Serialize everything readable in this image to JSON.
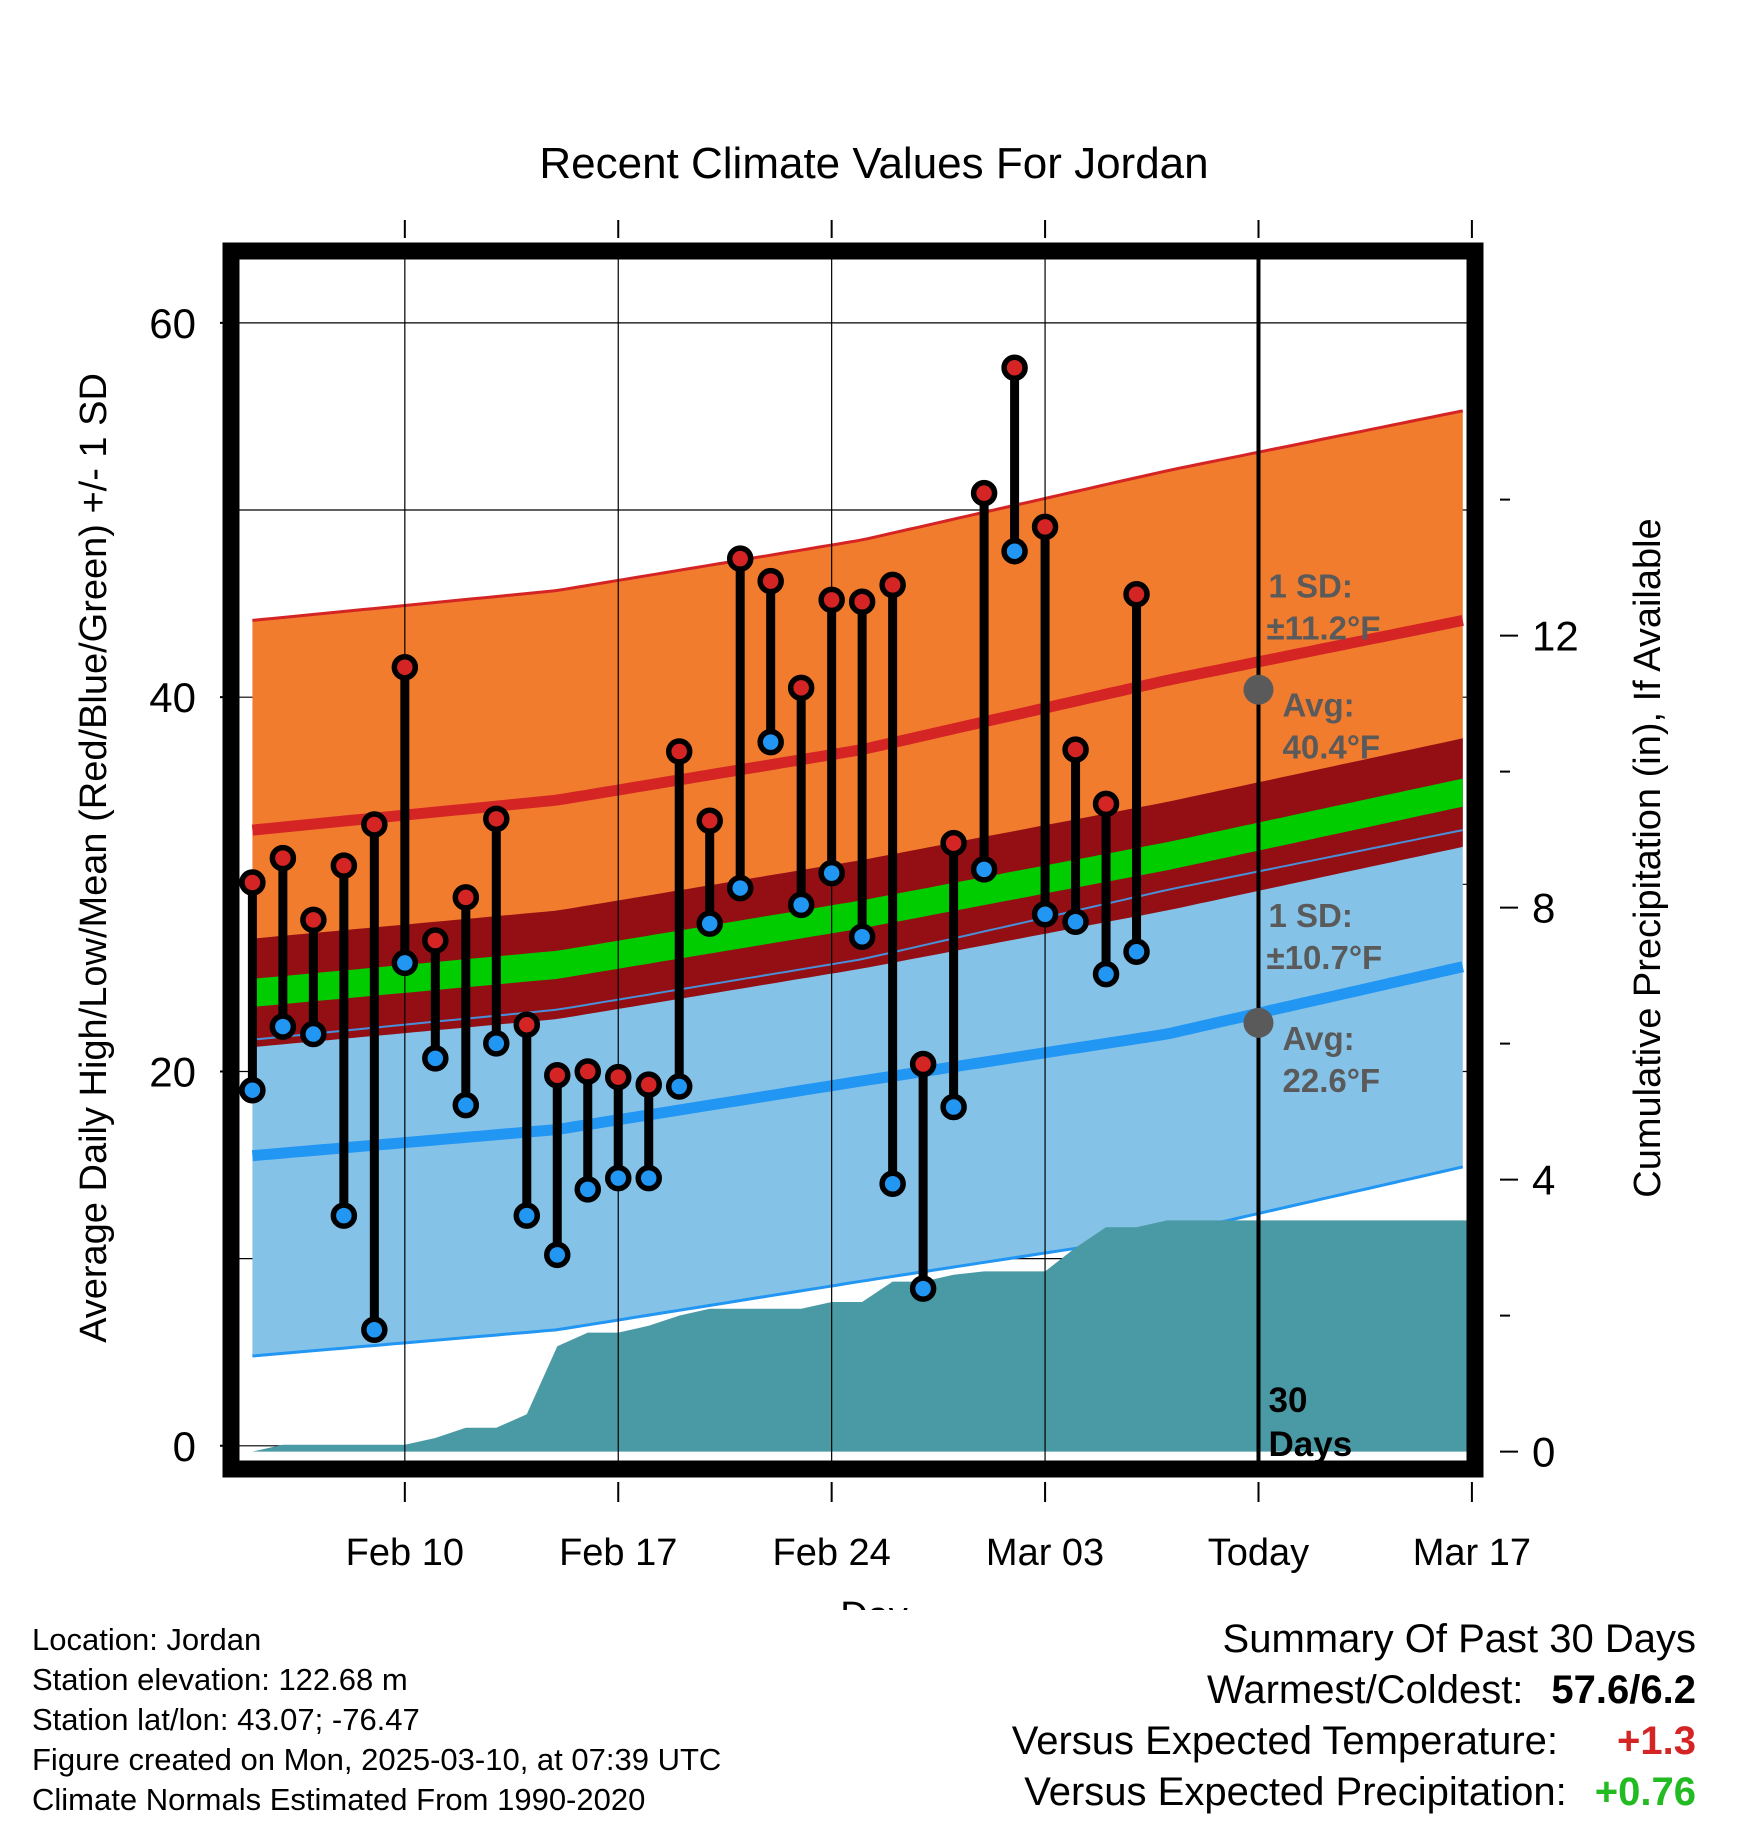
{
  "chart_data": {
    "type": "line",
    "title": "Recent Climate Values For Jordan",
    "xlabel": "Day",
    "ylabel": "Average Daily High/Low/Mean (Red/Blue/Green) +/- 1 SD",
    "y2label": "Cumulative Precipitation (in), If Available",
    "ylim": [
      -1.4,
      64
    ],
    "y2lim": [
      -0.3,
      17.7
    ],
    "xlim": [
      -0.8,
      40.2
    ],
    "x_ticks": [
      {
        "day": 5,
        "label": "Feb 10"
      },
      {
        "day": 12,
        "label": "Feb 17"
      },
      {
        "day": 19,
        "label": "Feb 24"
      },
      {
        "day": 26,
        "label": "Mar 03"
      },
      {
        "day": 33,
        "label": "Today"
      },
      {
        "day": 40,
        "label": "Mar 17"
      }
    ],
    "y_ticks": [
      0,
      20,
      40,
      60
    ],
    "y2_ticks": [
      0,
      4,
      8,
      12
    ],
    "grid": true,
    "today_day": 33,
    "days_label": "30 Days",
    "normals": {
      "days": [
        0,
        10,
        20,
        30,
        39.7
      ],
      "high_avg": [
        32.9,
        34.5,
        37.2,
        40.9,
        44.1
      ],
      "high_sd": 11.2,
      "low_avg": [
        15.5,
        16.9,
        19.5,
        22.0,
        25.6
      ],
      "low_sd": 10.7,
      "mean_avg": [
        24.2,
        25.7,
        28.4,
        31.5,
        34.9
      ],
      "mean_band_halfwidth": 2.9,
      "mean_line_halfwidth": 0.75
    },
    "series": [
      {
        "name": "High",
        "color": "#d42424",
        "values": [
          30.1,
          31.4,
          28.1,
          31.0,
          33.2,
          41.6,
          27.0,
          29.3,
          33.5,
          22.5,
          19.8,
          20.0,
          19.7,
          19.3,
          37.1,
          33.4,
          47.4,
          46.2,
          40.5,
          45.2,
          45.1,
          46.0,
          20.4,
          32.2,
          50.9,
          57.6,
          49.1,
          37.2,
          34.3,
          45.5
        ]
      },
      {
        "name": "Low",
        "color": "#2196f3",
        "values": [
          19.0,
          22.4,
          22.0,
          12.3,
          6.2,
          25.8,
          20.7,
          18.2,
          21.5,
          12.3,
          10.2,
          13.7,
          14.3,
          14.3,
          19.2,
          27.9,
          29.8,
          37.6,
          28.9,
          30.6,
          27.2,
          14.0,
          8.4,
          18.1,
          30.8,
          47.8,
          28.4,
          28.0,
          25.2,
          26.4
        ]
      }
    ],
    "precip": {
      "days": [
        0,
        1,
        2,
        3,
        4,
        5,
        6,
        7,
        8,
        9,
        10,
        11,
        12,
        13,
        14,
        15,
        16,
        17,
        18,
        19,
        20,
        21,
        22,
        23,
        24,
        25,
        26,
        27,
        28,
        29,
        30,
        31,
        32,
        33,
        34,
        40.2
      ],
      "values": [
        0,
        0.1,
        0.1,
        0.1,
        0.1,
        0.1,
        0.2,
        0.35,
        0.35,
        0.55,
        1.55,
        1.75,
        1.75,
        1.85,
        2.0,
        2.1,
        2.1,
        2.1,
        2.1,
        2.2,
        2.2,
        2.5,
        2.5,
        2.6,
        2.65,
        2.65,
        2.65,
        3.0,
        3.3,
        3.3,
        3.4,
        3.4,
        3.4,
        3.4,
        3.4,
        3.4
      ]
    },
    "annotations": {
      "high_sd_label": "1 SD:",
      "high_sd_value": "±11.2°F",
      "high_avg_label": "Avg:",
      "high_avg_value": "40.4°F",
      "high_avg_dot": 40.4,
      "low_sd_label": "1 SD:",
      "low_sd_value": "±10.7°F",
      "low_avg_label": "Avg:",
      "low_avg_value": "22.6°F",
      "low_avg_dot": 22.6
    }
  },
  "colors": {
    "high_band": "#f27c2e",
    "high_line": "#d42424",
    "low_band": "#85c2e8",
    "low_line": "#2196f3",
    "mean_band": "#930f14",
    "mean_line": "#00cc00",
    "precip": "#4a9aa5",
    "annotation": "#5a5a5a",
    "positive_temp": "#d42424",
    "positive_precip": "#22bb22"
  },
  "footer": {
    "location": "Location: Jordan",
    "elevation": "Station elevation: 122.68 m",
    "latlon": "Station lat/lon: 43.07; -76.47",
    "created": "Figure created on Mon, 2025-03-10, at 07:39 UTC",
    "normals": "Climate Normals Estimated From 1990-2020"
  },
  "summary": {
    "title": "Summary Of Past 30 Days",
    "warmest_label": "Warmest/Coldest:",
    "warmest_value": "57.6/6.2",
    "temp_label": "Versus Expected Temperature:",
    "temp_value": "+1.3",
    "precip_label": "Versus Expected Precipitation:",
    "precip_value": "+0.76"
  }
}
